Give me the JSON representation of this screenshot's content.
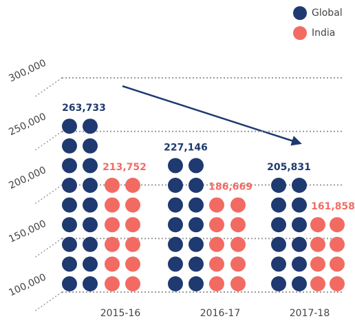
{
  "chart_data": {
    "type": "dot",
    "categories": [
      "2015-16",
      "2016-17",
      "2017-18"
    ],
    "series": [
      {
        "name": "Global",
        "color": "#1f3a70",
        "values": [
          263733,
          227146,
          205831
        ],
        "value_labels": [
          "263,733",
          "227,146",
          "205,831"
        ]
      },
      {
        "name": "India",
        "color": "#f26b63",
        "values": [
          213752,
          186669,
          161858
        ],
        "value_labels": [
          "213,752",
          "186,669",
          "161,858"
        ]
      }
    ],
    "ylim": [
      100000,
      300000
    ],
    "yticks": [
      {
        "value": 100000,
        "label": "100,000"
      },
      {
        "value": 150000,
        "label": "150,000"
      },
      {
        "value": 200000,
        "label": "200,000"
      },
      {
        "value": 250000,
        "label": "250,000"
      },
      {
        "value": 300000,
        "label": "300,000"
      }
    ],
    "grid": true
  }
}
